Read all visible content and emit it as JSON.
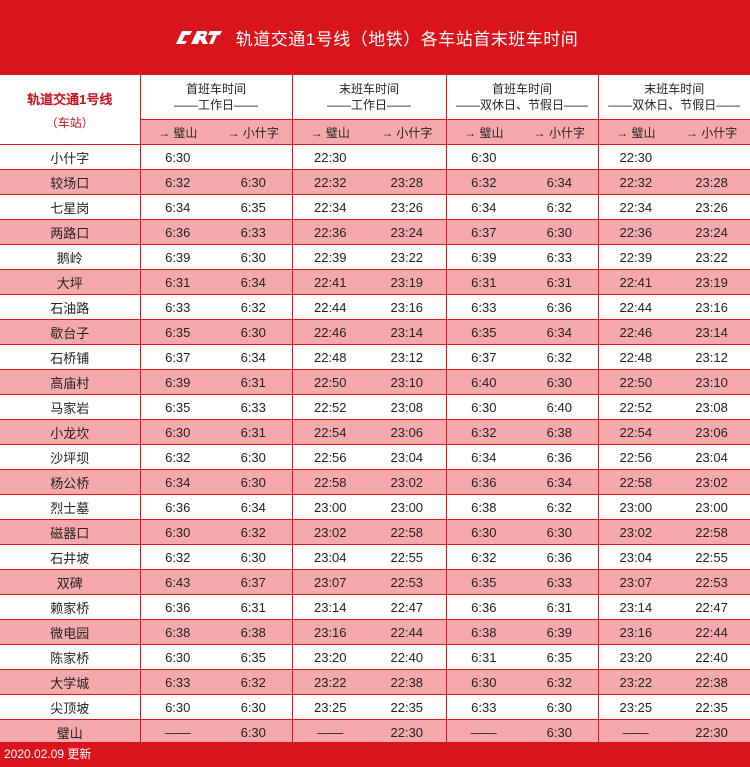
{
  "header": {
    "title": "轨道交通1号线（地铁）各车站首末班车时间",
    "logo_icon": "crt-logo-icon"
  },
  "table": {
    "station_header": "轨道交通1号线",
    "station_subheader": "（车站）",
    "groups": [
      {
        "line1": "首班车时间",
        "line2": "——工作日——"
      },
      {
        "line1": "末班车时间",
        "line2": "——工作日——"
      },
      {
        "line1": "首班车时间",
        "line2": "——双休日、节假日——"
      },
      {
        "line1": "末班车时间",
        "line2": "——双休日、节假日——"
      }
    ],
    "directions": [
      "→ 璧山",
      "→ 小什字",
      "→ 璧山",
      "→ 小什字",
      "→ 璧山",
      "→ 小什字",
      "→ 璧山",
      "→ 小什字"
    ],
    "rows": [
      {
        "station": "小什字",
        "c": [
          "6:30",
          "",
          "22:30",
          "",
          "6:30",
          "",
          "22:30",
          ""
        ]
      },
      {
        "station": "较场口",
        "c": [
          "6:32",
          "6:30",
          "22:32",
          "23:28",
          "6:32",
          "6:34",
          "22:32",
          "23:28"
        ]
      },
      {
        "station": "七星岗",
        "c": [
          "6:34",
          "6:35",
          "22:34",
          "23:26",
          "6:34",
          "6:32",
          "22:34",
          "23:26"
        ]
      },
      {
        "station": "两路口",
        "c": [
          "6:36",
          "6:33",
          "22:36",
          "23:24",
          "6:37",
          "6:30",
          "22:36",
          "23:24"
        ]
      },
      {
        "station": "鹅岭",
        "c": [
          "6:39",
          "6:30",
          "22:39",
          "23:22",
          "6:39",
          "6:33",
          "22:39",
          "23:22"
        ]
      },
      {
        "station": "大坪",
        "c": [
          "6:31",
          "6:34",
          "22:41",
          "23:19",
          "6:31",
          "6:31",
          "22:41",
          "23:19"
        ]
      },
      {
        "station": "石油路",
        "c": [
          "6:33",
          "6:32",
          "22:44",
          "23:16",
          "6:33",
          "6:36",
          "22:44",
          "23:16"
        ]
      },
      {
        "station": "歇台子",
        "c": [
          "6:35",
          "6:30",
          "22:46",
          "23:14",
          "6:35",
          "6:34",
          "22:46",
          "23:14"
        ]
      },
      {
        "station": "石桥铺",
        "c": [
          "6:37",
          "6:34",
          "22:48",
          "23:12",
          "6:37",
          "6:32",
          "22:48",
          "23:12"
        ]
      },
      {
        "station": "高庙村",
        "c": [
          "6:39",
          "6:31",
          "22:50",
          "23:10",
          "6:40",
          "6:30",
          "22:50",
          "23:10"
        ]
      },
      {
        "station": "马家岩",
        "c": [
          "6:35",
          "6:33",
          "22:52",
          "23:08",
          "6:30",
          "6:40",
          "22:52",
          "23:08"
        ]
      },
      {
        "station": "小龙坎",
        "c": [
          "6:30",
          "6:31",
          "22:54",
          "23:06",
          "6:32",
          "6:38",
          "22:54",
          "23:06"
        ]
      },
      {
        "station": "沙坪坝",
        "c": [
          "6:32",
          "6:30",
          "22:56",
          "23:04",
          "6:34",
          "6:36",
          "22:56",
          "23:04"
        ]
      },
      {
        "station": "杨公桥",
        "c": [
          "6:34",
          "6:30",
          "22:58",
          "23:02",
          "6:36",
          "6:34",
          "22:58",
          "23:02"
        ]
      },
      {
        "station": "烈士墓",
        "c": [
          "6:36",
          "6:34",
          "23:00",
          "23:00",
          "6:38",
          "6:32",
          "23:00",
          "23:00"
        ]
      },
      {
        "station": "磁器口",
        "c": [
          "6:30",
          "6:32",
          "23:02",
          "22:58",
          "6:30",
          "6:30",
          "23:02",
          "22:58"
        ]
      },
      {
        "station": "石井坡",
        "c": [
          "6:32",
          "6:30",
          "23:04",
          "22:55",
          "6:32",
          "6:36",
          "23:04",
          "22:55"
        ]
      },
      {
        "station": "双碑",
        "c": [
          "6:43",
          "6:37",
          "23:07",
          "22:53",
          "6:35",
          "6:33",
          "23:07",
          "22:53"
        ]
      },
      {
        "station": "赖家桥",
        "c": [
          "6:36",
          "6:31",
          "23:14",
          "22:47",
          "6:36",
          "6:31",
          "23:14",
          "22:47"
        ]
      },
      {
        "station": "微电园",
        "c": [
          "6:38",
          "6:38",
          "23:16",
          "22:44",
          "6:38",
          "6:39",
          "23:16",
          "22:44"
        ]
      },
      {
        "station": "陈家桥",
        "c": [
          "6:30",
          "6:35",
          "23:20",
          "22:40",
          "6:31",
          "6:35",
          "23:20",
          "22:40"
        ]
      },
      {
        "station": "大学城",
        "c": [
          "6:33",
          "6:32",
          "23:22",
          "22:38",
          "6:30",
          "6:32",
          "23:22",
          "22:38"
        ]
      },
      {
        "station": "尖顶坡",
        "c": [
          "6:30",
          "6:30",
          "23:25",
          "22:35",
          "6:33",
          "6:30",
          "23:25",
          "22:35"
        ]
      },
      {
        "station": "璧山",
        "c": [
          "——",
          "6:30",
          "——",
          "22:30",
          "——",
          "6:30",
          "——",
          "22:30"
        ]
      }
    ]
  },
  "footer": {
    "updated": "2020.02.09 更新"
  },
  "colors": {
    "brand_red": "#d9141c",
    "row_pink": "#f6a9ad",
    "station_header_text": "#c8101a"
  }
}
